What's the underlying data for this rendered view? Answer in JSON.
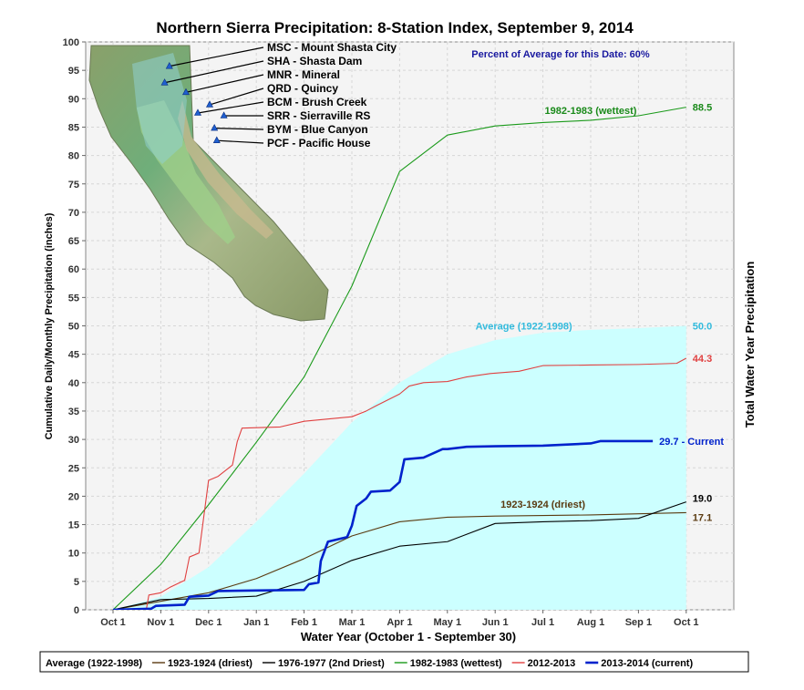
{
  "chart_data": {
    "type": "line",
    "title": "Northern Sierra Precipitation: 8-Station Index, September 9, 2014",
    "xlabel": "Water Year (October 1 - September 30)",
    "ylabel": "Cumulative Daily/Monthly Precipitation (inches)",
    "ylabel_right": "Total Water Year Precipitation",
    "percent_note": "Percent of Average for this Date: 60%",
    "xlim": [
      0,
      12.5
    ],
    "ylim": [
      0,
      100
    ],
    "yticks": [
      0,
      5,
      10,
      15,
      20,
      25,
      30,
      35,
      40,
      45,
      50,
      55,
      60,
      65,
      70,
      75,
      80,
      85,
      90,
      95,
      100
    ],
    "month_ticks": [
      {
        "x": 0,
        "label": "Oct 1"
      },
      {
        "x": 1,
        "label": "Nov 1"
      },
      {
        "x": 2,
        "label": "Dec 1"
      },
      {
        "x": 3,
        "label": "Jan 1"
      },
      {
        "x": 4,
        "label": "Feb 1"
      },
      {
        "x": 5,
        "label": "Mar 1"
      },
      {
        "x": 6,
        "label": "Apr 1"
      },
      {
        "x": 7,
        "label": "May 1"
      },
      {
        "x": 8,
        "label": "Jun 1"
      },
      {
        "x": 9,
        "label": "Jul 1"
      },
      {
        "x": 10,
        "label": "Aug 1"
      },
      {
        "x": 11,
        "label": "Sep 1"
      },
      {
        "x": 12,
        "label": "Oct 1"
      }
    ],
    "grid": true,
    "legend_position": "bottom",
    "stations": [
      {
        "label": "MSC - Mount Shasta City",
        "map_x": 0.33,
        "map_y": 0.075
      },
      {
        "label": "SHA - Shasta Dam",
        "map_x": 0.31,
        "map_y": 0.135
      },
      {
        "label": "MNR - Mineral",
        "map_x": 0.4,
        "map_y": 0.17
      },
      {
        "label": "QRD - Quincy",
        "map_x": 0.5,
        "map_y": 0.215
      },
      {
        "label": "BCM - Brush Creek",
        "map_x": 0.45,
        "map_y": 0.245
      },
      {
        "label": "SRR - Sierraville RS",
        "map_x": 0.56,
        "map_y": 0.255
      },
      {
        "label": "BYM - Blue Canyon",
        "map_x": 0.52,
        "map_y": 0.3
      },
      {
        "label": "PCF - Pacific House",
        "map_x": 0.53,
        "map_y": 0.345
      }
    ],
    "series": [
      {
        "name": "Average (1922-1998)",
        "kind": "area",
        "color": "#ccffff",
        "end_label": "50.0",
        "label_color": "#33bbdd",
        "inline_label": "Average (1922-1998)",
        "points": [
          [
            0,
            0
          ],
          [
            1,
            2.3
          ],
          [
            2,
            7.5
          ],
          [
            3,
            15.5
          ],
          [
            4,
            24
          ],
          [
            5,
            33
          ],
          [
            6,
            40
          ],
          [
            7,
            45
          ],
          [
            8,
            47.5
          ],
          [
            9,
            48.8
          ],
          [
            10,
            49.3
          ],
          [
            11,
            49.6
          ],
          [
            12,
            50.0
          ]
        ]
      },
      {
        "name": "1923-1924 (driest)",
        "kind": "line",
        "color": "#5a3a10",
        "end_label": "17.1",
        "label_color": "#5a3a10",
        "inline_label": "1923-1924 (driest)",
        "points": [
          [
            0,
            0
          ],
          [
            1,
            1.5
          ],
          [
            2,
            3.0
          ],
          [
            3,
            5.5
          ],
          [
            4,
            9.0
          ],
          [
            5,
            13.0
          ],
          [
            6,
            15.5
          ],
          [
            7,
            16.3
          ],
          [
            8,
            16.5
          ],
          [
            9,
            16.6
          ],
          [
            10,
            16.7
          ],
          [
            11,
            16.9
          ],
          [
            12,
            17.1
          ]
        ]
      },
      {
        "name": "1976-1977 (2nd Driest)",
        "kind": "line",
        "color": "#000000",
        "end_label": "19.0",
        "label_color": "#000000",
        "points": [
          [
            0,
            0
          ],
          [
            1,
            1.8
          ],
          [
            2,
            2.0
          ],
          [
            3,
            2.4
          ],
          [
            4,
            5.0
          ],
          [
            5,
            8.7
          ],
          [
            6,
            11.2
          ],
          [
            7,
            12.0
          ],
          [
            8,
            15.2
          ],
          [
            9,
            15.5
          ],
          [
            10,
            15.7
          ],
          [
            11,
            16.1
          ],
          [
            12,
            19.0
          ]
        ]
      },
      {
        "name": "1982-1983 (wettest)",
        "kind": "line",
        "color": "#1a9a1a",
        "end_label": "88.5",
        "label_color": "#1a8a1a",
        "inline_label": "1982-1983 (wettest)",
        "points": [
          [
            0,
            0
          ],
          [
            1,
            8.0
          ],
          [
            2,
            18.5
          ],
          [
            3,
            29.5
          ],
          [
            4,
            41.0
          ],
          [
            5,
            57.0
          ],
          [
            6,
            77.2
          ],
          [
            7,
            83.6
          ],
          [
            8,
            85.2
          ],
          [
            9,
            85.8
          ],
          [
            10,
            86.2
          ],
          [
            11,
            87.0
          ],
          [
            12,
            88.5
          ]
        ]
      },
      {
        "name": "2012-2013",
        "kind": "line",
        "color": "#e04040",
        "end_label": "44.3",
        "label_color": "#e04040",
        "points": [
          [
            0,
            0
          ],
          [
            0.7,
            0.2
          ],
          [
            0.75,
            2.6
          ],
          [
            1.0,
            3.0
          ],
          [
            1.2,
            4.0
          ],
          [
            1.5,
            5.2
          ],
          [
            1.6,
            9.3
          ],
          [
            1.8,
            10.0
          ],
          [
            2.0,
            22.8
          ],
          [
            2.2,
            23.5
          ],
          [
            2.5,
            25.5
          ],
          [
            2.6,
            29.6
          ],
          [
            2.7,
            32.0
          ],
          [
            3.5,
            32.2
          ],
          [
            3.9,
            33.0
          ],
          [
            4.0,
            33.2
          ],
          [
            4.5,
            33.6
          ],
          [
            5.0,
            34.0
          ],
          [
            5.3,
            35.0
          ],
          [
            5.5,
            35.9
          ],
          [
            6.0,
            38.0
          ],
          [
            6.2,
            39.4
          ],
          [
            6.5,
            40.0
          ],
          [
            7.0,
            40.2
          ],
          [
            7.4,
            41.0
          ],
          [
            7.9,
            41.6
          ],
          [
            8.5,
            42.0
          ],
          [
            9.0,
            43.0
          ],
          [
            10.0,
            43.1
          ],
          [
            11.0,
            43.2
          ],
          [
            11.8,
            43.4
          ],
          [
            12.0,
            44.3
          ]
        ]
      },
      {
        "name": "2013-2014 (current)",
        "kind": "line",
        "color": "#0022cc",
        "end_label": "29.7 - Current",
        "label_color": "#0022cc",
        "points": [
          [
            0,
            0
          ],
          [
            0.8,
            0.2
          ],
          [
            0.9,
            0.7
          ],
          [
            1.5,
            0.9
          ],
          [
            1.6,
            2.3
          ],
          [
            2.0,
            2.5
          ],
          [
            2.2,
            3.3
          ],
          [
            3.0,
            3.4
          ],
          [
            4.0,
            3.5
          ],
          [
            4.1,
            4.5
          ],
          [
            4.3,
            4.8
          ],
          [
            4.35,
            8.6
          ],
          [
            4.5,
            12.0
          ],
          [
            4.9,
            12.8
          ],
          [
            5.0,
            14.8
          ],
          [
            5.1,
            18.3
          ],
          [
            5.3,
            19.6
          ],
          [
            5.4,
            20.8
          ],
          [
            5.8,
            21.0
          ],
          [
            6.0,
            22.5
          ],
          [
            6.1,
            26.5
          ],
          [
            6.5,
            26.8
          ],
          [
            6.9,
            28.3
          ],
          [
            7.0,
            28.3
          ],
          [
            7.4,
            28.7
          ],
          [
            8.0,
            28.8
          ],
          [
            9.0,
            28.9
          ],
          [
            10.0,
            29.3
          ],
          [
            10.2,
            29.7
          ],
          [
            11.3,
            29.7
          ]
        ]
      }
    ]
  }
}
